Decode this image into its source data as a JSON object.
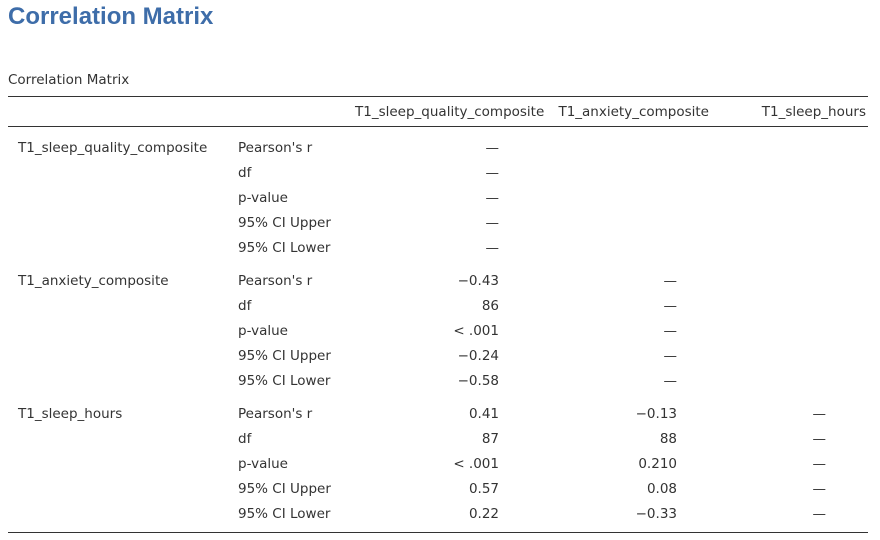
{
  "heading": "Correlation Matrix",
  "caption": "Correlation Matrix",
  "columns": [
    "T1_sleep_quality_composite",
    "T1_anxiety_composite",
    "T1_sleep_hours"
  ],
  "rows": [
    {
      "variable": "T1_sleep_quality_composite",
      "stats": [
        {
          "label": "Pearson's r",
          "values": [
            "—",
            "",
            ""
          ]
        },
        {
          "label": "df",
          "values": [
            "—",
            "",
            ""
          ]
        },
        {
          "label": "p-value",
          "values": [
            "—",
            "",
            ""
          ]
        },
        {
          "label": "95% CI Upper",
          "values": [
            "—",
            "",
            ""
          ]
        },
        {
          "label": "95% CI Lower",
          "values": [
            "—",
            "",
            ""
          ]
        }
      ]
    },
    {
      "variable": "T1_anxiety_composite",
      "stats": [
        {
          "label": "Pearson's r",
          "values": [
            "−0.43",
            "—",
            ""
          ]
        },
        {
          "label": "df",
          "values": [
            "86",
            "—",
            ""
          ]
        },
        {
          "label": "p-value",
          "values": [
            "< .001",
            "—",
            ""
          ]
        },
        {
          "label": "95% CI Upper",
          "values": [
            "−0.24",
            "—",
            ""
          ]
        },
        {
          "label": "95% CI Lower",
          "values": [
            "−0.58",
            "—",
            ""
          ]
        }
      ]
    },
    {
      "variable": "T1_sleep_hours",
      "stats": [
        {
          "label": "Pearson's r",
          "values": [
            "0.41",
            "−0.13",
            "—"
          ]
        },
        {
          "label": "df",
          "values": [
            "87",
            "88",
            "—"
          ]
        },
        {
          "label": "p-value",
          "values": [
            "< .001",
            "0.210",
            "—"
          ]
        },
        {
          "label": "95% CI Upper",
          "values": [
            "0.57",
            "0.08",
            "—"
          ]
        },
        {
          "label": "95% CI Lower",
          "values": [
            "0.22",
            "−0.33",
            "—"
          ]
        }
      ]
    }
  ],
  "colors": {
    "heading": "#3e6da9",
    "text": "#333333",
    "rule": "#333333"
  }
}
